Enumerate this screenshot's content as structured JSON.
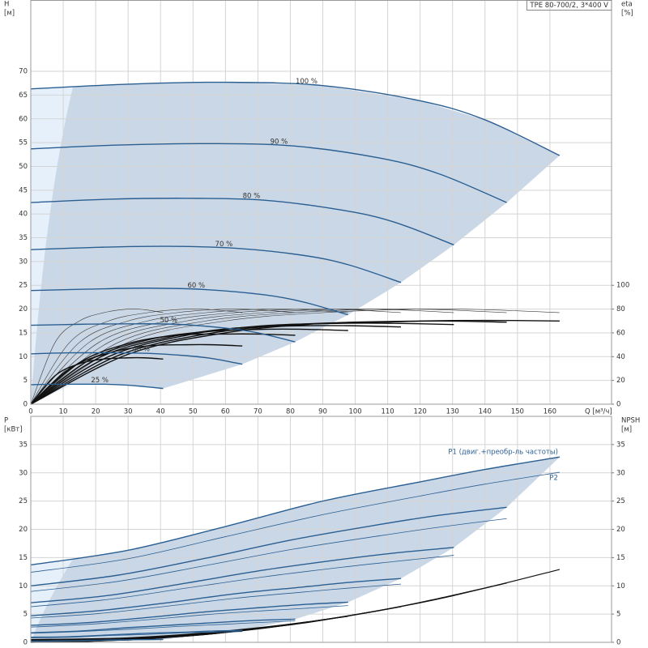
{
  "chart_data": [
    {
      "type": "line",
      "title": "TPE 80-700/2, 3*400 V",
      "x_label": "Q [м³/ч]",
      "y_label": "H",
      "y_unit": "[м]",
      "y2_label": "eta",
      "y2_unit": "[%]",
      "xlim": [
        0,
        179
      ],
      "xticks": [
        0,
        10,
        20,
        30,
        40,
        50,
        60,
        70,
        80,
        90,
        100,
        110,
        120,
        130,
        140,
        150,
        160
      ],
      "ylim": [
        0,
        85
      ],
      "yticks": [
        0,
        5,
        10,
        15,
        20,
        25,
        30,
        35,
        40,
        45,
        50,
        55,
        60,
        65,
        70
      ],
      "y2lim": [
        0,
        340
      ],
      "y2ticks": [
        0,
        20,
        40,
        60,
        80,
        100
      ],
      "grid": true,
      "xtick_labels": true,
      "color": "#2b5f92",
      "series": [
        {
          "name": "100 %",
          "x": [
            0,
            30,
            60,
            90,
            120,
            140,
            163
          ],
          "values": [
            66.3,
            67.3,
            67.7,
            67.0,
            63.8,
            59.8,
            52.3
          ],
          "eta": [
            0,
            52,
            70,
            77,
            80,
            79.5,
            77
          ],
          "eta_total": [
            0,
            42,
            60,
            68,
            70,
            70.5,
            70
          ]
        },
        {
          "name": "90 %",
          "x": [
            0,
            27,
            54,
            81,
            108,
            126,
            146.7
          ],
          "values": [
            53.7,
            54.5,
            54.8,
            54.3,
            51.7,
            48.4,
            42.4
          ],
          "eta": [
            0,
            52,
            70,
            77,
            80,
            79.5,
            77
          ],
          "eta_total": [
            0,
            41,
            59,
            67,
            69,
            70,
            69
          ]
        },
        {
          "name": "80 %",
          "x": [
            0,
            24,
            48,
            72,
            96,
            112,
            130.4
          ],
          "values": [
            42.4,
            43.1,
            43.3,
            42.9,
            40.8,
            38.3,
            33.5
          ],
          "eta": [
            0,
            52,
            70,
            77,
            80,
            79.5,
            77
          ],
          "eta_total": [
            0,
            40,
            58,
            66,
            68,
            68,
            67
          ]
        },
        {
          "name": "70 %",
          "x": [
            0,
            21,
            42,
            63,
            84,
            98,
            114.1
          ],
          "values": [
            32.5,
            33.0,
            33.2,
            32.8,
            31.3,
            29.3,
            25.6
          ],
          "eta": [
            0,
            52,
            70,
            77,
            80,
            79.5,
            77
          ],
          "eta_total": [
            0,
            39,
            56,
            64,
            66,
            66,
            65
          ]
        },
        {
          "name": "60 %",
          "x": [
            0,
            18,
            36,
            54,
            72,
            84,
            97.8
          ],
          "values": [
            23.9,
            24.2,
            24.4,
            24.1,
            23.0,
            21.5,
            18.8
          ],
          "eta": [
            0,
            52,
            70,
            77,
            80,
            79.5,
            77
          ],
          "eta_total": [
            0,
            37,
            54,
            61,
            63,
            63,
            62
          ]
        },
        {
          "name": "50 %",
          "x": [
            0,
            15,
            30,
            45,
            60,
            70,
            81.5
          ],
          "values": [
            16.6,
            16.8,
            16.9,
            16.8,
            16.0,
            15.0,
            13.1
          ],
          "eta": [
            0,
            52,
            70,
            77,
            80,
            79.5,
            77
          ],
          "eta_total": [
            0,
            35,
            51,
            58,
            59,
            59,
            58
          ]
        },
        {
          "name": "40 %",
          "x": [
            0,
            12,
            24,
            36,
            48,
            56,
            65.2
          ],
          "values": [
            10.6,
            10.8,
            10.8,
            10.7,
            10.2,
            9.6,
            8.4
          ],
          "eta": [
            0,
            52,
            70,
            77,
            80,
            79.5,
            77
          ],
          "eta_total": [
            0,
            30,
            43,
            49,
            50,
            50,
            49
          ]
        },
        {
          "name": "25 %",
          "x": [
            0,
            7.5,
            15,
            22.5,
            30,
            35,
            40.8
          ],
          "values": [
            4.1,
            4.2,
            4.2,
            4.2,
            4.0,
            3.7,
            3.3
          ],
          "eta": [
            0,
            52,
            70,
            77,
            80,
            79.5,
            77
          ],
          "eta_total": [
            0,
            24,
            34,
            38,
            39,
            39,
            38
          ]
        }
      ]
    },
    {
      "type": "line",
      "y_label": "P",
      "y_unit": "[кВт]",
      "y2_label": "NPSH",
      "y2_unit": "[м]",
      "xlim": [
        0,
        179
      ],
      "xticks": [
        0,
        10,
        20,
        30,
        40,
        50,
        60,
        70,
        80,
        90,
        100,
        110,
        120,
        130,
        140,
        150,
        160
      ],
      "ylim": [
        0,
        40
      ],
      "yticks": [
        0,
        5,
        10,
        15,
        20,
        25,
        30,
        35
      ],
      "y2lim": [
        0,
        40
      ],
      "y2ticks": [
        0,
        5,
        10,
        15,
        20,
        25,
        30,
        35
      ],
      "grid": true,
      "xtick_labels": false,
      "color": "#2b5f92",
      "p1_label": "P1 (двиг.+преобр-ль частоты)",
      "p2_label": "P2",
      "curves": [
        {
          "x": [
            0,
            30,
            60,
            90,
            120,
            140,
            163
          ],
          "p1": [
            13.7,
            16.3,
            20.5,
            25.0,
            28.4,
            30.6,
            32.8
          ],
          "p2": [
            12.4,
            14.8,
            18.7,
            22.6,
            25.9,
            28.0,
            30.1
          ],
          "npsh": [
            0.5,
            0.8,
            2.0,
            4.0,
            7.0,
            9.6,
            12.9
          ]
        },
        {
          "x": [
            0,
            27,
            54,
            81,
            108,
            126,
            146.7
          ],
          "p1": [
            10.0,
            11.9,
            14.9,
            18.2,
            20.9,
            22.5,
            23.9
          ],
          "p2": [
            9.0,
            10.8,
            13.6,
            16.5,
            18.9,
            20.4,
            21.9
          ],
          "npsh": [
            0.4,
            0.6,
            1.6,
            3.2,
            5.7,
            7.8,
            10.5
          ]
        },
        {
          "x": [
            0,
            24,
            48,
            72,
            96,
            112,
            130.4
          ],
          "p1": [
            7.0,
            8.3,
            10.5,
            12.8,
            14.7,
            15.8,
            16.8
          ],
          "p2": [
            6.3,
            7.6,
            9.6,
            11.6,
            13.3,
            14.3,
            15.4
          ],
          "npsh": [
            0.3,
            0.5,
            1.3,
            2.6,
            4.5,
            6.1,
            8.3
          ]
        },
        {
          "x": [
            0,
            21,
            42,
            63,
            84,
            98,
            114.1
          ],
          "p1": [
            4.7,
            5.6,
            7.0,
            8.6,
            9.8,
            10.6,
            11.3
          ],
          "p2": [
            4.3,
            5.1,
            6.4,
            7.8,
            8.9,
            9.6,
            10.3
          ],
          "npsh": [
            0.2,
            0.4,
            1.0,
            2.0,
            3.4,
            4.7,
            6.3
          ]
        },
        {
          "x": [
            0,
            18,
            36,
            54,
            72,
            84,
            97.8
          ],
          "p1": [
            3.0,
            3.5,
            4.4,
            5.4,
            6.2,
            6.7,
            7.1
          ],
          "p2": [
            2.7,
            3.2,
            4.0,
            4.9,
            5.6,
            6.0,
            6.5
          ],
          "npsh": [
            0.2,
            0.3,
            0.7,
            1.4,
            2.5,
            3.5,
            4.6
          ]
        },
        {
          "x": [
            0,
            15,
            30,
            45,
            60,
            70,
            81.5
          ],
          "p1": [
            1.7,
            2.0,
            2.6,
            3.1,
            3.6,
            3.9,
            4.1
          ],
          "p2": [
            1.6,
            1.9,
            2.3,
            2.8,
            3.2,
            3.5,
            3.8
          ],
          "npsh": [
            0.1,
            0.2,
            0.5,
            1.0,
            1.8,
            2.4,
            3.2
          ]
        },
        {
          "x": [
            0,
            12,
            24,
            36,
            48,
            56,
            65.2
          ],
          "p1": [
            0.9,
            1.0,
            1.3,
            1.6,
            1.8,
            2.0,
            2.1
          ],
          "p2": [
            0.8,
            0.9,
            1.2,
            1.4,
            1.7,
            1.8,
            1.9
          ],
          "npsh": [
            0.1,
            0.1,
            0.3,
            0.6,
            1.1,
            1.5,
            2.1
          ]
        },
        {
          "x": [
            0,
            7.5,
            15,
            22.5,
            30,
            35,
            40.8
          ],
          "p1": [
            0.2,
            0.25,
            0.32,
            0.39,
            0.45,
            0.48,
            0.51
          ],
          "p2": [
            0.2,
            0.23,
            0.29,
            0.35,
            0.4,
            0.44,
            0.47
          ],
          "npsh": [
            0.0,
            0.1,
            0.1,
            0.3,
            0.4,
            0.6,
            0.8
          ]
        }
      ]
    }
  ]
}
